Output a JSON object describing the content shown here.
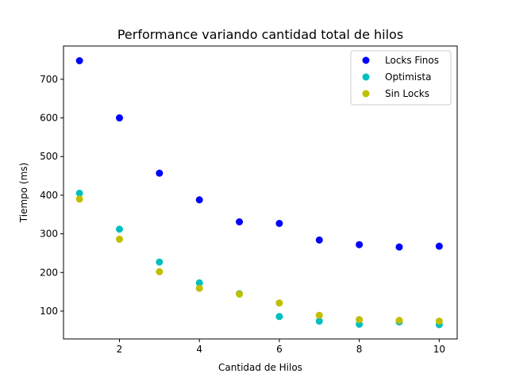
{
  "chart_data": {
    "type": "scatter",
    "title": "Performance variando cantidad total de hilos",
    "xlabel": "Cantidad de Hilos",
    "ylabel": "Tiempo (ms)",
    "xlim": [
      0.6,
      10.45
    ],
    "ylim": [
      28,
      786
    ],
    "xticks": [
      2,
      4,
      6,
      8,
      10
    ],
    "yticks": [
      100,
      200,
      300,
      400,
      500,
      600,
      700
    ],
    "grid": false,
    "legend_position": "top-right",
    "series": [
      {
        "name": "Locks Finos",
        "color": "#0000ff",
        "x": [
          1,
          2,
          3,
          4,
          5,
          6,
          7,
          8,
          9,
          10
        ],
        "y": [
          748,
          600,
          457,
          388,
          331,
          327,
          284,
          272,
          266,
          268
        ]
      },
      {
        "name": "Optimista",
        "color": "#00bfbf",
        "x": [
          1,
          2,
          3,
          4,
          5,
          6,
          7,
          8,
          9,
          10
        ],
        "y": [
          405,
          312,
          227,
          173,
          145,
          86,
          74,
          66,
          72,
          65
        ]
      },
      {
        "name": "Sin Locks",
        "color": "#bfbf00",
        "x": [
          1,
          2,
          3,
          4,
          5,
          6,
          7,
          8,
          9,
          10
        ],
        "y": [
          390,
          286,
          202,
          159,
          144,
          121,
          89,
          78,
          76,
          74
        ]
      }
    ]
  }
}
